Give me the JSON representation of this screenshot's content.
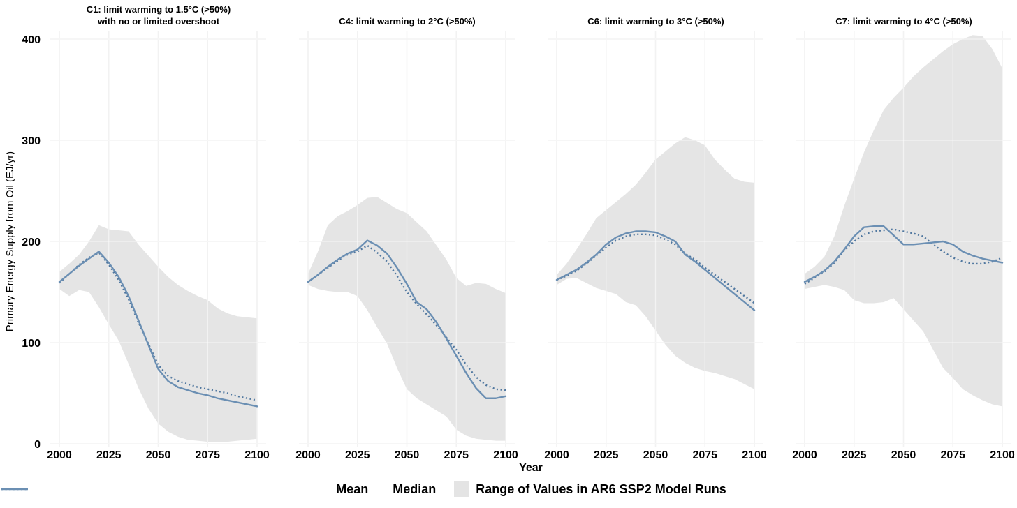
{
  "chart_data": {
    "type": "area",
    "description": "Faceted ribbon chart: mean and median lines with min-max range band across AR6 SSP2 model runs, one facet per climate category",
    "xlabel": "Year",
    "ylabel": "Primary Energy Supply from Oil (EJ/yr)",
    "xlim": [
      2000,
      2100
    ],
    "ylim": [
      0,
      400
    ],
    "x_ticks": [
      2000,
      2025,
      2050,
      2075,
      2100
    ],
    "y_ticks": [
      0,
      100,
      200,
      300,
      400
    ],
    "grid": true,
    "legend": {
      "position": "bottom",
      "entries": [
        {
          "label": "Mean",
          "style": "dotted-line"
        },
        {
          "label": "Median",
          "style": "solid-line"
        },
        {
          "label": "Range of Values in AR6 SSP2 Model Runs",
          "style": "filled-area"
        }
      ]
    },
    "years": [
      2000,
      2005,
      2010,
      2015,
      2020,
      2025,
      2030,
      2035,
      2040,
      2045,
      2050,
      2055,
      2060,
      2065,
      2070,
      2075,
      2080,
      2085,
      2090,
      2095,
      2100
    ],
    "panels": [
      {
        "id": "C1",
        "title": "C1: limit warming to 1.5°C (>50%)",
        "subtitle": "with no or limited overshoot",
        "series": {
          "median": [
            160,
            168,
            176,
            183,
            190,
            179,
            165,
            146,
            122,
            98,
            74,
            62,
            56,
            53,
            50,
            48,
            45,
            43,
            41,
            39,
            37
          ],
          "mean": [
            159,
            168,
            177,
            184,
            189,
            177,
            162,
            143,
            120,
            99,
            78,
            67,
            62,
            59,
            56,
            54,
            52,
            50,
            47,
            45,
            43
          ],
          "range_high": [
            170,
            178,
            187,
            200,
            216,
            212,
            211,
            210,
            197,
            186,
            175,
            165,
            157,
            151,
            146,
            142,
            134,
            129,
            126,
            125,
            124
          ],
          "range_low": [
            153,
            146,
            152,
            150,
            135,
            118,
            102,
            79,
            55,
            35,
            20,
            12,
            7,
            4,
            3,
            2,
            2,
            2,
            3,
            4,
            5
          ]
        }
      },
      {
        "id": "C4",
        "title": "C4: limit warming to 2°C (>50%)",
        "subtitle": "",
        "series": {
          "median": [
            160,
            167,
            175,
            182,
            188,
            192,
            201,
            196,
            188,
            174,
            158,
            140,
            133,
            120,
            104,
            87,
            70,
            55,
            45,
            45,
            47
          ],
          "mean": [
            160,
            167,
            174,
            181,
            187,
            190,
            196,
            189,
            180,
            166,
            150,
            138,
            128,
            117,
            105,
            93,
            78,
            66,
            58,
            54,
            53
          ],
          "range_high": [
            168,
            190,
            216,
            225,
            230,
            236,
            243,
            244,
            238,
            232,
            228,
            219,
            210,
            196,
            182,
            164,
            156,
            159,
            158,
            153,
            149
          ],
          "range_low": [
            157,
            153,
            151,
            150,
            150,
            146,
            132,
            115,
            99,
            75,
            54,
            45,
            39,
            33,
            27,
            14,
            8,
            5,
            4,
            3,
            3
          ]
        }
      },
      {
        "id": "C6",
        "title": "C6: limit warming to 3°C (>50%)",
        "subtitle": "",
        "series": {
          "median": [
            162,
            167,
            172,
            179,
            187,
            197,
            204,
            208,
            210,
            210,
            209,
            205,
            200,
            187,
            180,
            172,
            164,
            156,
            148,
            140,
            132
          ],
          "mean": [
            162,
            166,
            171,
            178,
            186,
            194,
            201,
            205,
            207,
            207,
            206,
            202,
            197,
            188,
            182,
            174,
            167,
            160,
            153,
            146,
            139
          ],
          "range_high": [
            167,
            178,
            192,
            207,
            223,
            231,
            239,
            247,
            256,
            268,
            281,
            289,
            297,
            303,
            300,
            295,
            281,
            271,
            262,
            259,
            258
          ],
          "range_low": [
            157,
            163,
            164,
            159,
            154,
            151,
            148,
            140,
            137,
            126,
            112,
            98,
            87,
            80,
            75,
            72,
            70,
            67,
            64,
            59,
            54
          ]
        }
      },
      {
        "id": "C7",
        "title": "C7: limit warming to 4°C (>50%)",
        "subtitle": "",
        "series": {
          "median": [
            160,
            165,
            171,
            180,
            192,
            205,
            214,
            215,
            215,
            206,
            197,
            197,
            198,
            199,
            200,
            197,
            190,
            186,
            183,
            181,
            179
          ],
          "mean": [
            158,
            164,
            170,
            179,
            191,
            200,
            207,
            210,
            211,
            212,
            210,
            208,
            205,
            197,
            190,
            184,
            180,
            178,
            178,
            180,
            184
          ],
          "range_high": [
            168,
            175,
            185,
            205,
            235,
            262,
            288,
            310,
            330,
            342,
            352,
            363,
            372,
            380,
            388,
            395,
            400,
            404,
            403,
            390,
            371
          ],
          "range_low": [
            153,
            155,
            157,
            155,
            152,
            142,
            139,
            139,
            140,
            144,
            133,
            122,
            111,
            93,
            75,
            65,
            54,
            48,
            43,
            39,
            37
          ]
        }
      }
    ]
  },
  "colors": {
    "median_line": "#6b8fb3",
    "mean_line": "#50779f",
    "range_fill": "#e4e4e4",
    "gridline": "#e2e2e2",
    "text": "#000000",
    "background": "#ffffff"
  }
}
